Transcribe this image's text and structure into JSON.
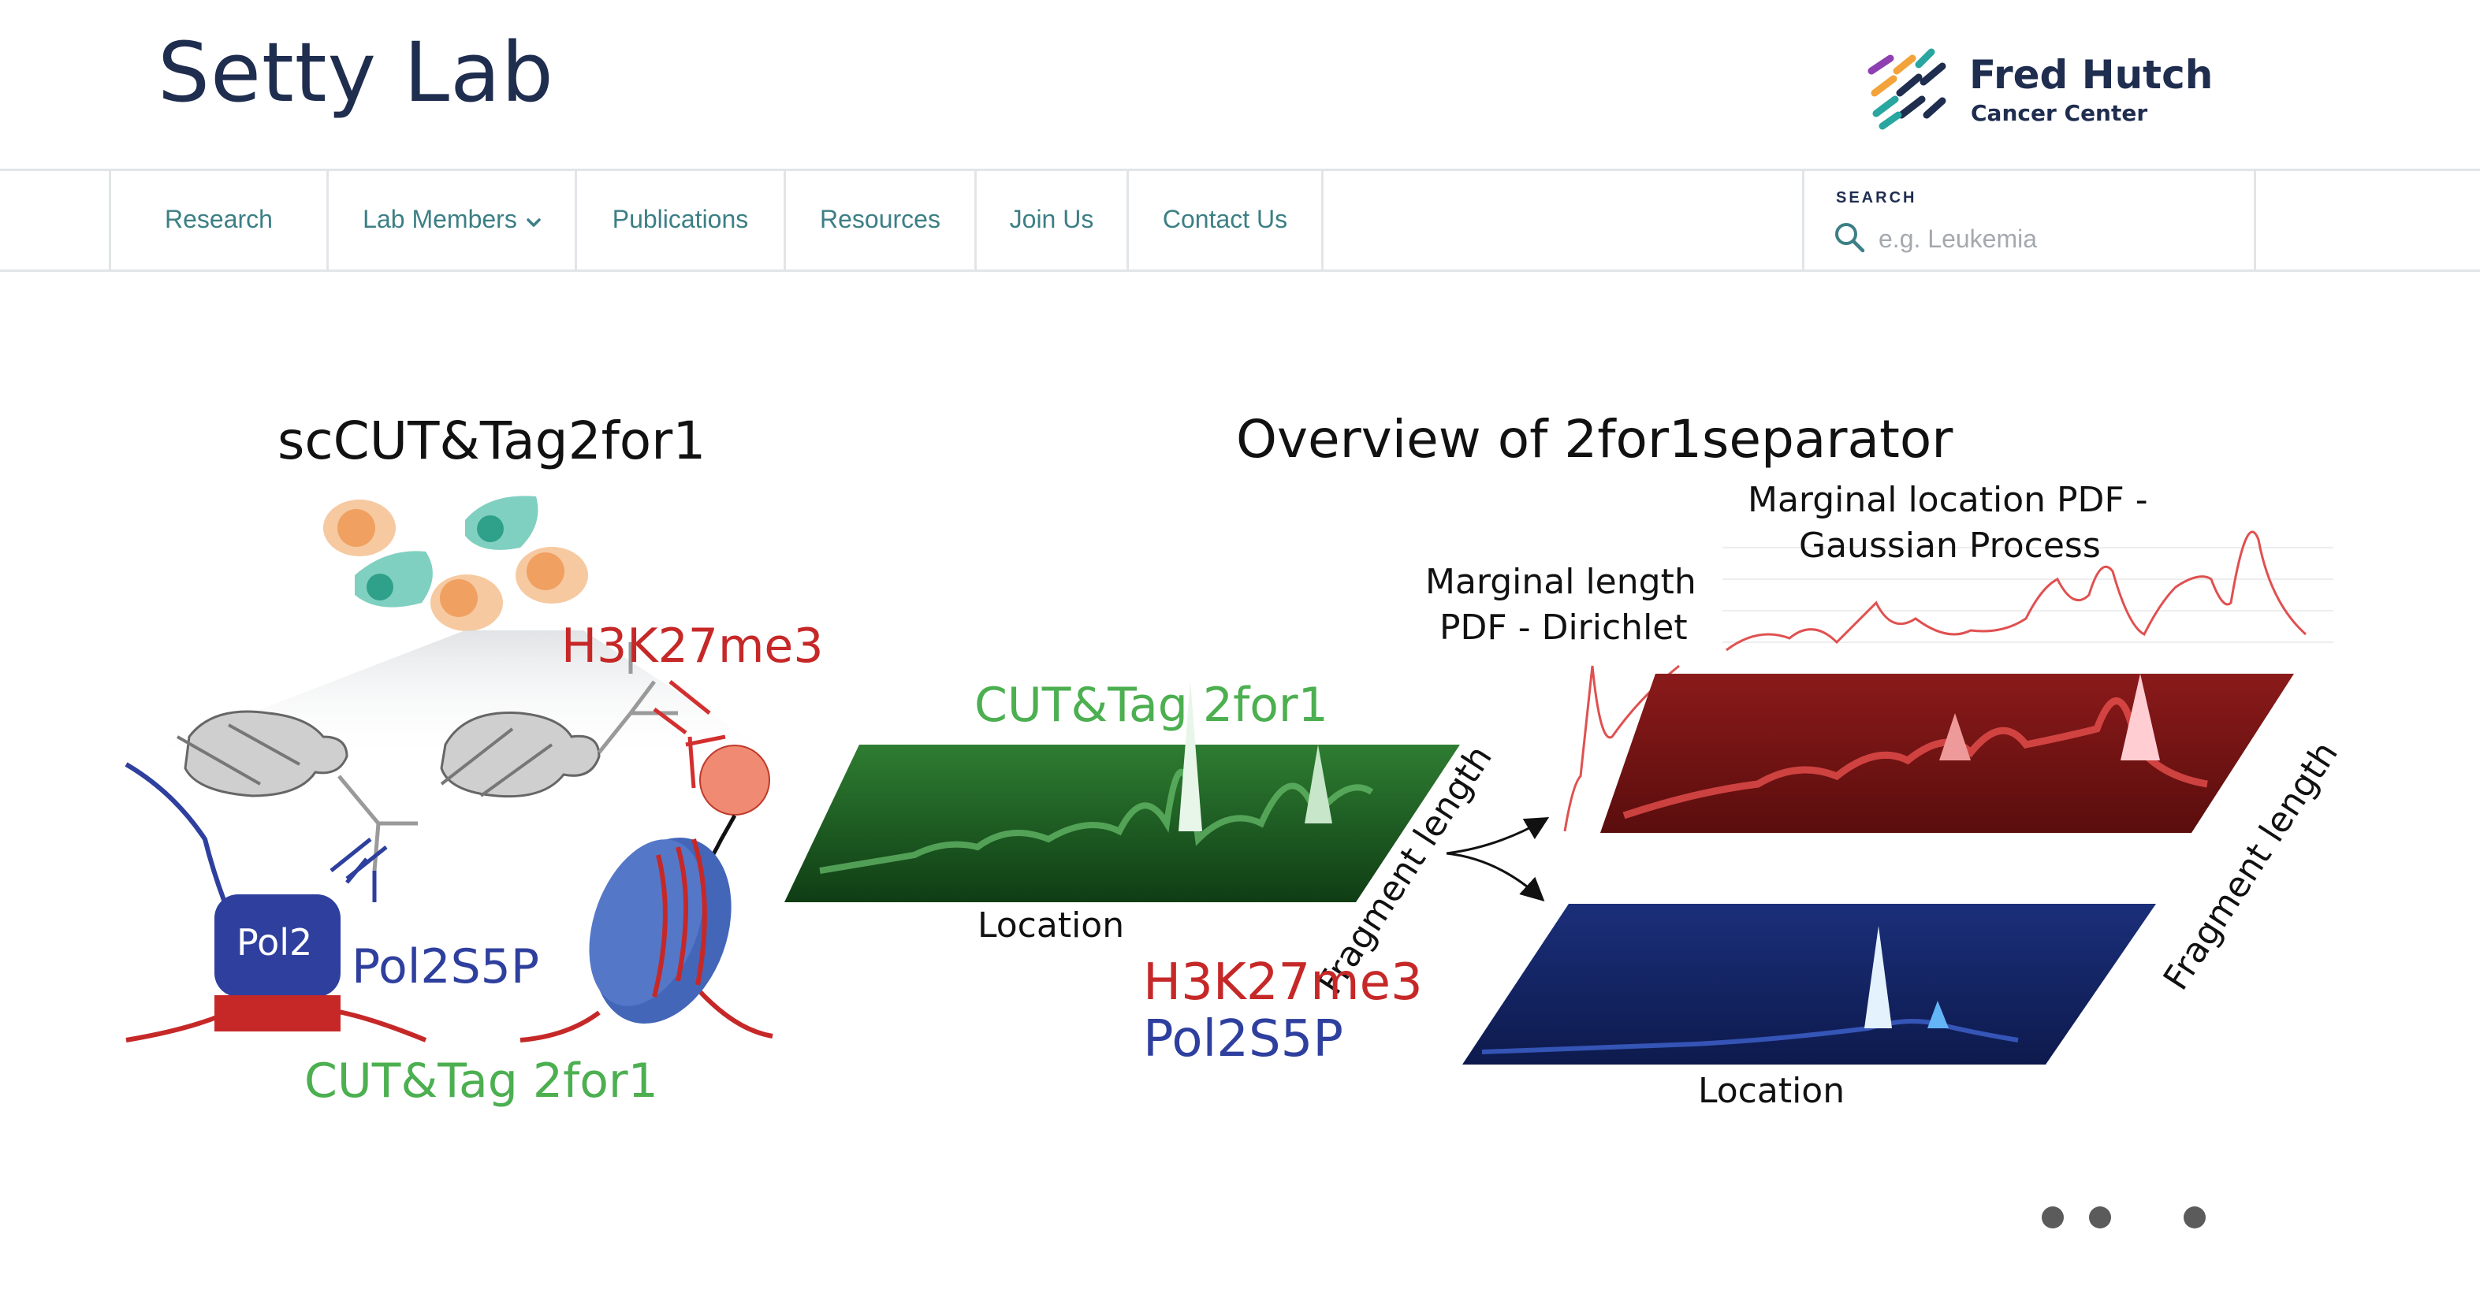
{
  "site": {
    "title": "Setty Lab"
  },
  "logo": {
    "line1": "Fred Hutch",
    "line2": "Cancer Center",
    "name": "fred-hutch-logo"
  },
  "nav": {
    "items": [
      {
        "label": "Research"
      },
      {
        "label": "Lab Members",
        "icon": "chevron-down-icon"
      },
      {
        "label": "Publications"
      },
      {
        "label": "Resources"
      },
      {
        "label": "Join Us"
      },
      {
        "label": "Contact Us"
      }
    ]
  },
  "search": {
    "label": "SEARCH",
    "placeholder": "e.g. Leukemia",
    "value": "",
    "icon": "search-icon"
  },
  "figure": {
    "left_title": "scCUT&Tag2for1",
    "h3k27me3_label": "H3K27me3",
    "pol2_label": "Pol2",
    "pol2s5p_label": "Pol2S5P",
    "cuttag_bottom": "CUT&Tag 2for1",
    "right_title": "Overview of 2for1separator",
    "cuttag_middle": "CUT&Tag 2for1",
    "location_mid": "Location",
    "fragment_length_mid": "Fragment length",
    "legend_h3k27me3": "H3K27me3",
    "legend_pol2s5p": "Pol2S5P",
    "marginal_length_1": "Marginal length",
    "marginal_length_2": "PDF - Dirichlet",
    "marginal_location_1": "Marginal location PDF -",
    "marginal_location_2": "Gaussian Process",
    "fragment_length_right": "Fragment length",
    "location_right": "Location",
    "colors": {
      "green": "#4caf50",
      "red": "#d32f2f",
      "blue": "#2e3f9e",
      "title": "#1f2d4f",
      "nav": "#3c7f85"
    }
  },
  "carousel": {
    "dots": 3
  }
}
